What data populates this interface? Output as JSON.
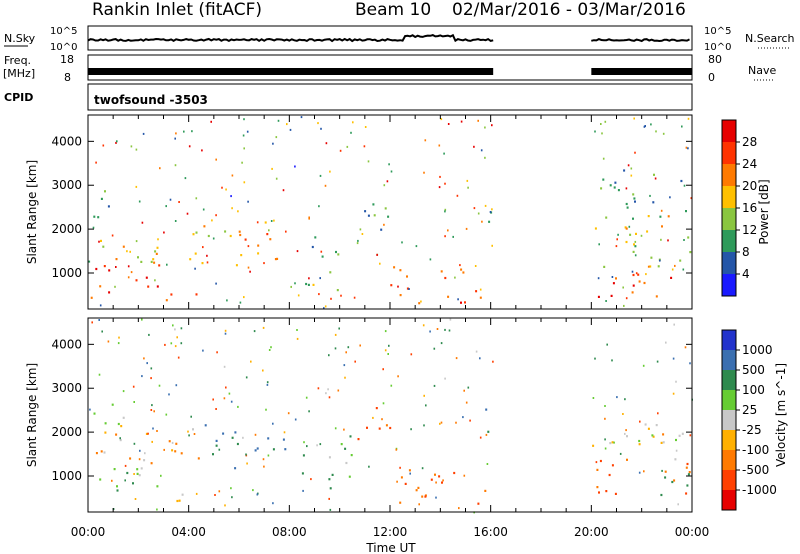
{
  "header": {
    "station": "Rankin Inlet (fitACF)",
    "beam": "Beam 10",
    "dates": "02/Mar/2016 - 03/Mar/2016"
  },
  "panels": {
    "nsky": {
      "label": "N.Sky",
      "ticks": [
        "10^5",
        "10^0"
      ],
      "right_label": "N.Search",
      "right_ticks": [
        "10^5",
        "10^0"
      ]
    },
    "freq": {
      "label": "Freq.",
      "unit": "[MHz]",
      "ticks": [
        "18",
        "8"
      ],
      "right_label": "Nave",
      "right_ticks": [
        "80",
        "0"
      ]
    },
    "cpid": {
      "label": "CPID",
      "value": "twofsound -3503"
    }
  },
  "colorbars": {
    "power": {
      "title": "Power [dB]",
      "ticks": [
        "28",
        "24",
        "20",
        "16",
        "12",
        "8",
        "4"
      ],
      "colors": [
        "#e60000",
        "#ff3300",
        "#ff7a00",
        "#ffc000",
        "#8ac640",
        "#2e9a5a",
        "#2456a8",
        "#1a1aff"
      ]
    },
    "velocity": {
      "title": "Velocity [m s^-1]",
      "ticks": [
        "1000",
        "500",
        "100",
        "25",
        "-25",
        "-100",
        "-500",
        "-1000"
      ],
      "colors": [
        "#2233cc",
        "#3a6fb0",
        "#2e8a4e",
        "#66cc33",
        "#c8c8c8",
        "#ffb000",
        "#ff7a00",
        "#ff4000",
        "#e60000"
      ]
    }
  },
  "chart_data": [
    {
      "type": "heatmap",
      "title": "",
      "ylabel": "Slant Range [km]",
      "xlabel": "",
      "x_ticks": [
        "00:00",
        "04:00",
        "08:00",
        "12:00",
        "16:00",
        "20:00",
        "00:00"
      ],
      "y_ticks": [
        1000,
        2000,
        3000,
        4000
      ],
      "xlim_hours": [
        0,
        24
      ],
      "ylim_km": [
        180,
        4600
      ],
      "quantity": "Power [dB]",
      "data_gaps_hours": [
        [
          16.1,
          20.0
        ]
      ],
      "regions": [
        {
          "t0": 0.0,
          "t1": 3.0,
          "r0": 450,
          "r1": 1250,
          "value": 28
        },
        {
          "t0": 0.0,
          "t1": 4.5,
          "r0": 1200,
          "r1": 2000,
          "value": 18
        },
        {
          "t0": 0.0,
          "t1": 1.0,
          "r0": 2000,
          "r1": 3000,
          "value": 10
        },
        {
          "t0": 3.0,
          "t1": 5.0,
          "r0": 400,
          "r1": 700,
          "value": 24
        },
        {
          "t0": 4.5,
          "t1": 7.8,
          "r0": 1100,
          "r1": 2200,
          "value": 20
        },
        {
          "t0": 8.5,
          "t1": 10.0,
          "r0": 600,
          "r1": 2000,
          "value": 12
        },
        {
          "t0": 10.5,
          "t1": 12.0,
          "r0": 1700,
          "r1": 2700,
          "value": 10
        },
        {
          "t0": 12.0,
          "t1": 16.0,
          "r0": 300,
          "r1": 1200,
          "value": 24
        },
        {
          "t0": 15.5,
          "t1": 16.0,
          "r0": 1800,
          "r1": 2800,
          "value": 8
        },
        {
          "t0": 20.0,
          "t1": 24.0,
          "r0": 450,
          "r1": 1100,
          "value": 28
        },
        {
          "t0": 20.0,
          "t1": 24.0,
          "r0": 1100,
          "r1": 2400,
          "value": 16
        },
        {
          "t0": 20.3,
          "t1": 24.0,
          "r0": 2400,
          "r1": 3400,
          "value": 10
        }
      ]
    },
    {
      "type": "heatmap",
      "title": "",
      "ylabel": "Slant Range [km]",
      "xlabel": "Time UT",
      "x_ticks": [
        "00:00",
        "04:00",
        "08:00",
        "12:00",
        "16:00",
        "20:00",
        "00:00"
      ],
      "y_ticks": [
        1000,
        2000,
        3000,
        4000
      ],
      "xlim_hours": [
        0,
        24
      ],
      "ylim_km": [
        180,
        4600
      ],
      "quantity": "Velocity [m s^-1]",
      "data_gaps_hours": [
        [
          16.1,
          20.0
        ]
      ],
      "regions": [
        {
          "t0": 0.0,
          "t1": 3.0,
          "r0": 500,
          "r1": 1300,
          "value": 100
        },
        {
          "t0": 0.0,
          "t1": 4.5,
          "r0": 1300,
          "r1": 2200,
          "value": -100
        },
        {
          "t0": 0.0,
          "t1": 1.5,
          "r0": 2200,
          "r1": 3000,
          "value": 0
        },
        {
          "t0": 4.5,
          "t1": 7.8,
          "r0": 1200,
          "r1": 2200,
          "value": 500
        },
        {
          "t0": 3.5,
          "t1": 5.0,
          "r0": 400,
          "r1": 800,
          "value": -100
        },
        {
          "t0": 8.5,
          "t1": 10.5,
          "r0": 700,
          "r1": 2000,
          "value": 100
        },
        {
          "t0": 10.5,
          "t1": 12.0,
          "r0": 1700,
          "r1": 2600,
          "value": -500
        },
        {
          "t0": 12.0,
          "t1": 16.0,
          "r0": 300,
          "r1": 1200,
          "value": -500
        },
        {
          "t0": 15.5,
          "t1": 16.0,
          "r0": 1700,
          "r1": 2600,
          "value": 500
        },
        {
          "t0": 20.0,
          "t1": 24.0,
          "r0": 600,
          "r1": 1400,
          "value": -500
        },
        {
          "t0": 20.0,
          "t1": 24.0,
          "r0": 1400,
          "r1": 2400,
          "value": 0
        },
        {
          "t0": 22.5,
          "t1": 24.0,
          "r0": 400,
          "r1": 1300,
          "value": 100
        }
      ]
    }
  ]
}
